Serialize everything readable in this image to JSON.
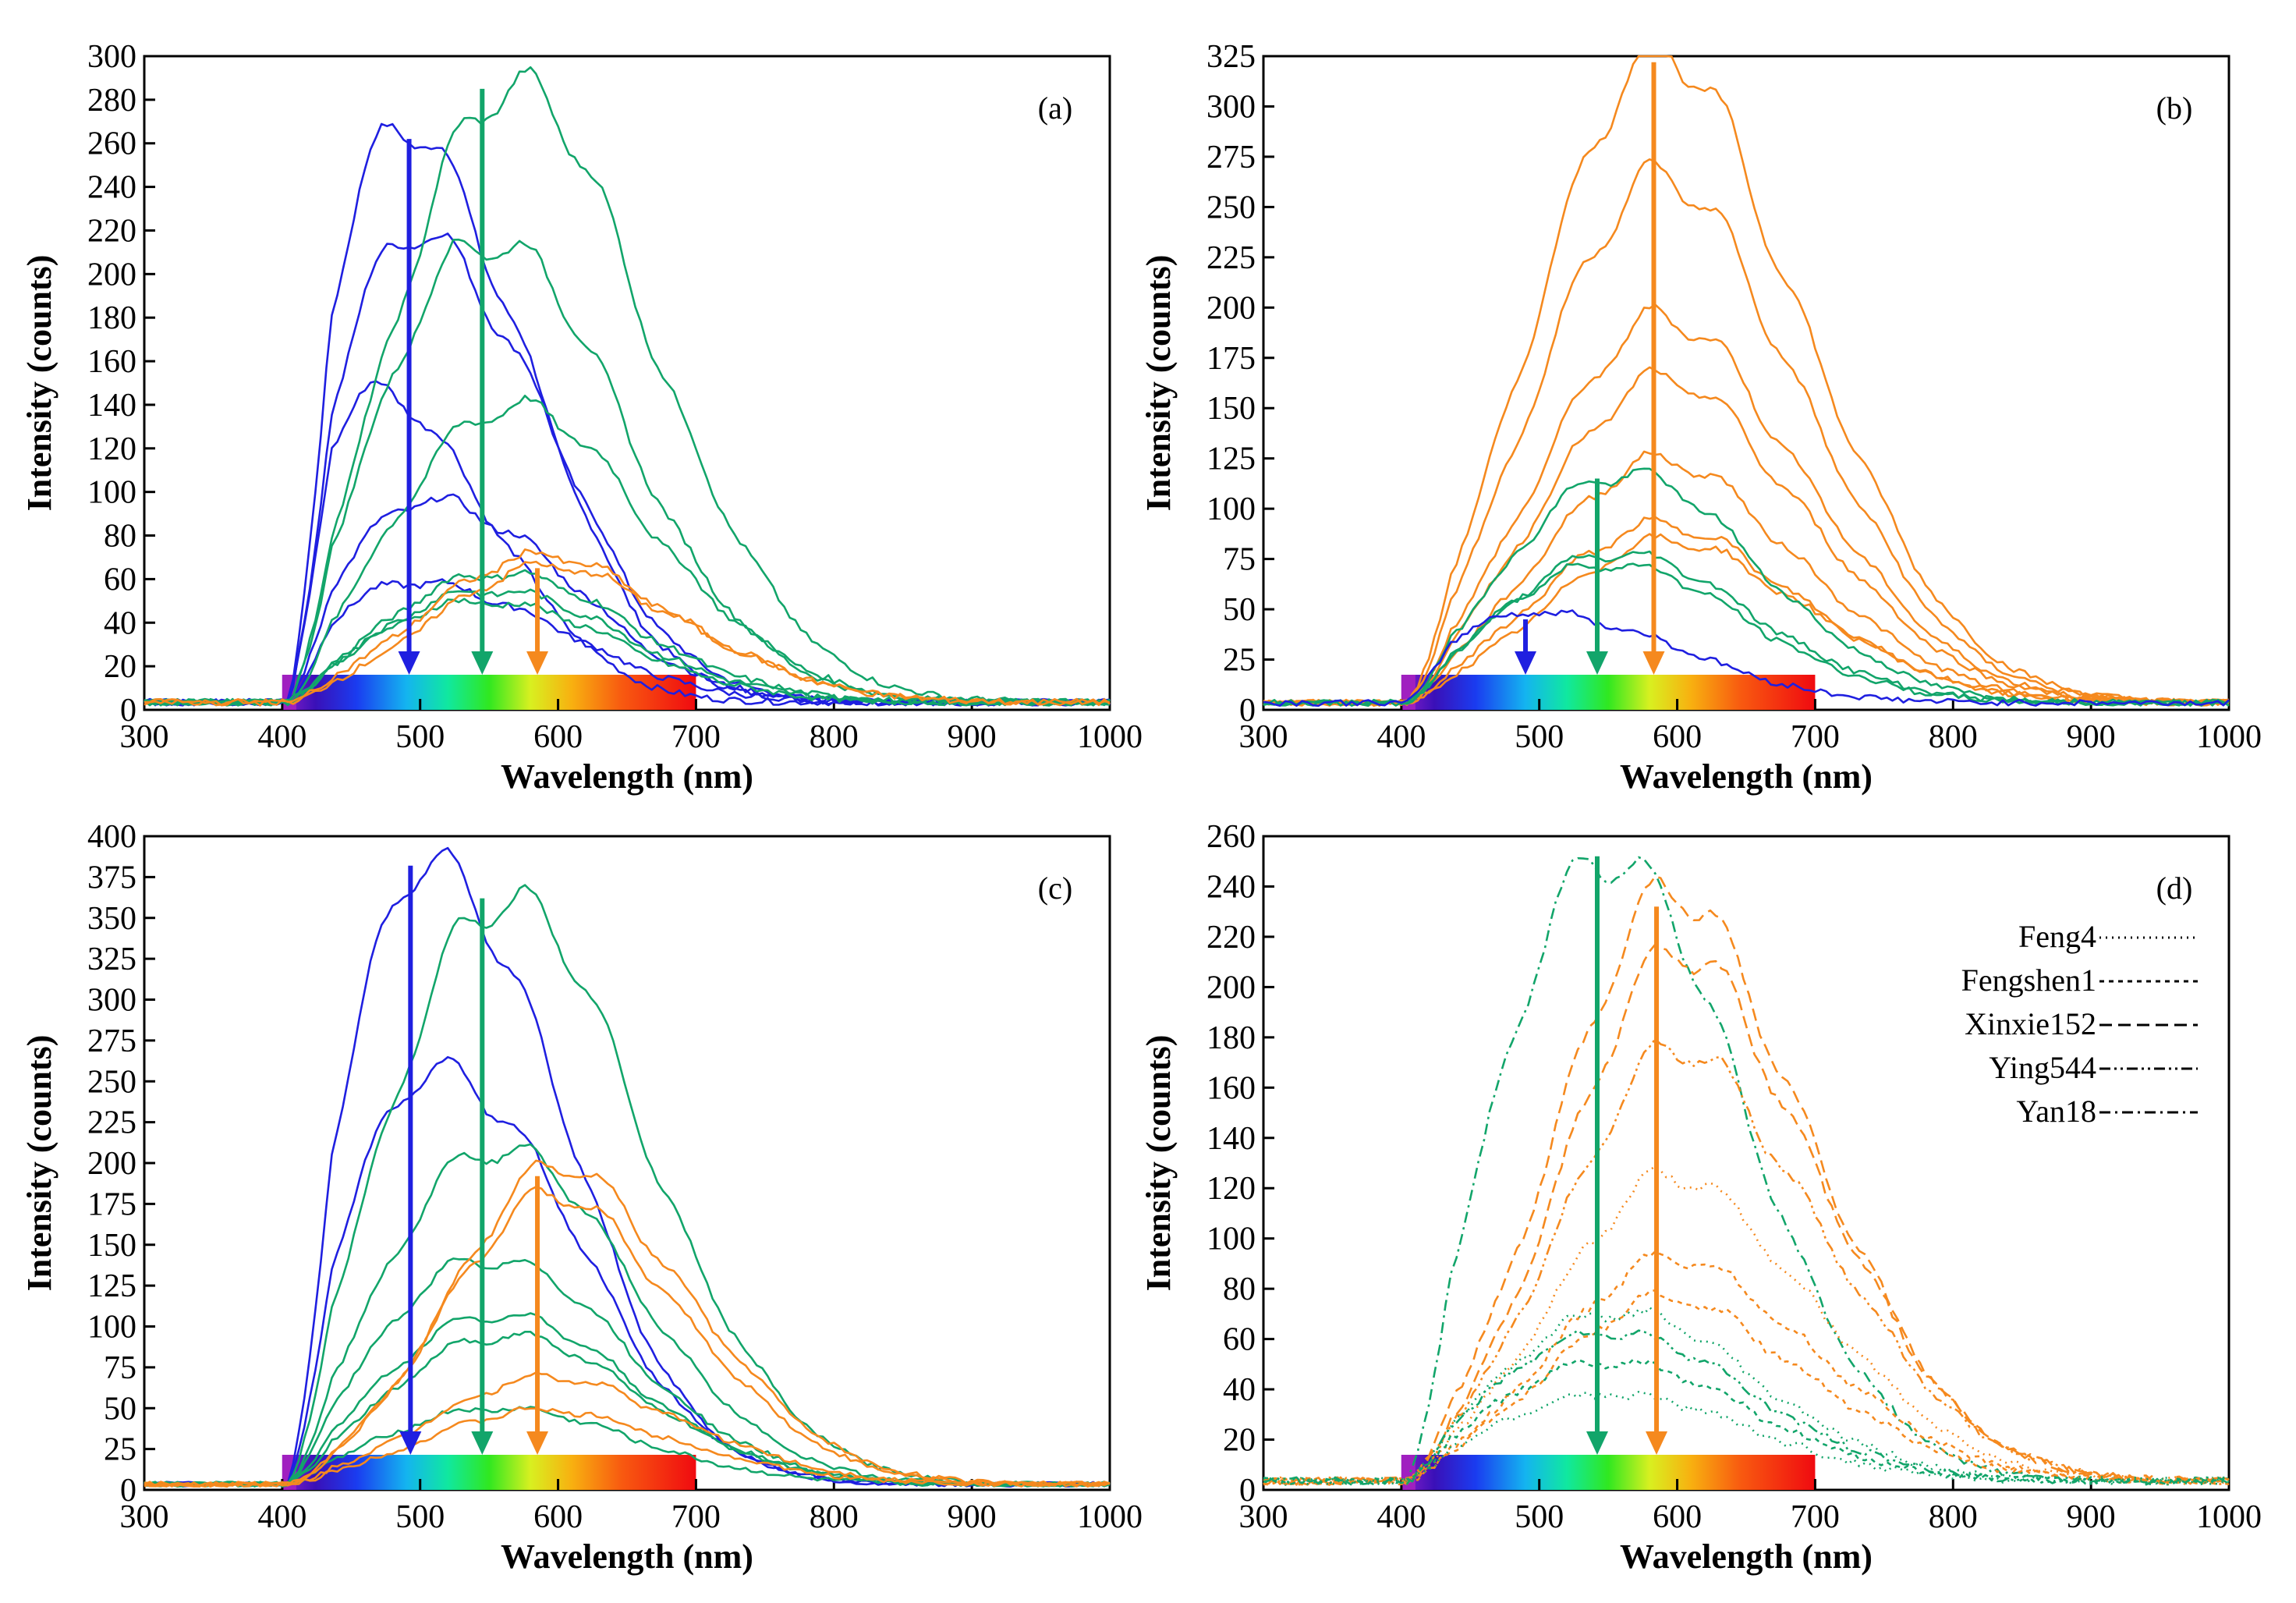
{
  "figure": {
    "spectrum_band_range_nm": [
      400,
      700
    ],
    "colors": {
      "blue": "#1f1fe0",
      "green": "#12a56a",
      "orange": "#f5891e",
      "violet": "#a020c0"
    }
  },
  "chart_data": [
    {
      "type": "line",
      "panel_label": "(a)",
      "xlabel": "Wavelength (nm)",
      "ylabel": "Intensity (counts)",
      "xlim": [
        300,
        1000
      ],
      "ylim": [
        0,
        300
      ],
      "x_ticks": [
        300,
        400,
        500,
        600,
        700,
        800,
        900,
        1000
      ],
      "y_ticks": [
        0,
        20,
        40,
        60,
        80,
        100,
        120,
        140,
        160,
        180,
        200,
        220,
        240,
        260,
        280,
        300
      ],
      "arrows": [
        {
          "x": 492,
          "top": 262,
          "color": "blue"
        },
        {
          "x": 545,
          "top": 285,
          "color": "green"
        },
        {
          "x": 585,
          "top": 65,
          "color": "orange"
        }
      ],
      "series": [
        {
          "name": "blue-1",
          "color": "blue",
          "peak": 262,
          "center": 490,
          "width": 95
        },
        {
          "name": "blue-2",
          "color": "blue",
          "peak": 215,
          "center": 500,
          "width": 100
        },
        {
          "name": "blue-3",
          "color": "blue",
          "peak": 140,
          "center": 470,
          "width": 90
        },
        {
          "name": "blue-4",
          "color": "blue",
          "peak": 93,
          "center": 510,
          "width": 105
        },
        {
          "name": "blue-5",
          "color": "blue",
          "peak": 55,
          "center": 500,
          "width": 110
        },
        {
          "name": "green-1",
          "color": "green",
          "peak": 285,
          "center": 560,
          "width": 115
        },
        {
          "name": "green-2",
          "color": "green",
          "peak": 215,
          "center": 545,
          "width": 110
        },
        {
          "name": "green-3",
          "color": "green",
          "peak": 137,
          "center": 560,
          "width": 115
        },
        {
          "name": "green-4",
          "color": "green",
          "peak": 60,
          "center": 550,
          "width": 110
        },
        {
          "name": "green-5",
          "color": "green",
          "peak": 52,
          "center": 545,
          "width": 110
        },
        {
          "name": "green-6",
          "color": "green",
          "peak": 47,
          "center": 540,
          "width": 110
        },
        {
          "name": "orange-1",
          "color": "orange",
          "peak": 67,
          "center": 580,
          "width": 115
        },
        {
          "name": "orange-2",
          "color": "orange",
          "peak": 62,
          "center": 585,
          "width": 115
        }
      ]
    },
    {
      "type": "line",
      "panel_label": "(b)",
      "xlabel": "Wavelength (nm)",
      "ylabel": "Intensity (counts)",
      "xlim": [
        300,
        1000
      ],
      "ylim": [
        0,
        325
      ],
      "x_ticks": [
        300,
        400,
        500,
        600,
        700,
        800,
        900,
        1000
      ],
      "y_ticks": [
        0,
        25,
        50,
        75,
        100,
        125,
        150,
        175,
        200,
        225,
        250,
        275,
        300,
        325
      ],
      "arrows": [
        {
          "x": 490,
          "top": 45,
          "color": "blue"
        },
        {
          "x": 542,
          "top": 115,
          "color": "green"
        },
        {
          "x": 583,
          "top": 322,
          "color": "orange"
        }
      ],
      "series": [
        {
          "name": "orange-1",
          "color": "orange",
          "peak": 322,
          "center": 580,
          "width": 120
        },
        {
          "name": "orange-2",
          "color": "orange",
          "peak": 260,
          "center": 580,
          "width": 120
        },
        {
          "name": "orange-3",
          "color": "orange",
          "peak": 190,
          "center": 582,
          "width": 120
        },
        {
          "name": "orange-4",
          "color": "orange",
          "peak": 160,
          "center": 582,
          "width": 120
        },
        {
          "name": "orange-5",
          "color": "orange",
          "peak": 120,
          "center": 580,
          "width": 118
        },
        {
          "name": "orange-6",
          "color": "orange",
          "peak": 88,
          "center": 580,
          "width": 118
        },
        {
          "name": "orange-7",
          "color": "orange",
          "peak": 80,
          "center": 585,
          "width": 118
        },
        {
          "name": "green-1",
          "color": "green",
          "peak": 115,
          "center": 555,
          "width": 112
        },
        {
          "name": "green-2",
          "color": "green",
          "peak": 75,
          "center": 550,
          "width": 112
        },
        {
          "name": "green-3",
          "color": "green",
          "peak": 70,
          "center": 545,
          "width": 112
        },
        {
          "name": "blue-1",
          "color": "blue",
          "peak": 45,
          "center": 500,
          "width": 110
        }
      ]
    },
    {
      "type": "line",
      "panel_label": "(c)",
      "xlabel": "Wavelength (nm)",
      "ylabel": "Intensity (counts)",
      "xlim": [
        300,
        1000
      ],
      "ylim": [
        0,
        400
      ],
      "x_ticks": [
        300,
        400,
        500,
        600,
        700,
        800,
        900,
        1000
      ],
      "y_ticks": [
        0,
        25,
        50,
        75,
        100,
        125,
        150,
        175,
        200,
        225,
        250,
        275,
        300,
        325,
        350,
        375,
        400
      ],
      "arrows": [
        {
          "x": 493,
          "top": 382,
          "color": "blue"
        },
        {
          "x": 545,
          "top": 362,
          "color": "green"
        },
        {
          "x": 585,
          "top": 192,
          "color": "orange"
        }
      ],
      "series": [
        {
          "name": "blue-1",
          "color": "blue",
          "peak": 382,
          "center": 510,
          "width": 100
        },
        {
          "name": "blue-2",
          "color": "blue",
          "peak": 255,
          "center": 515,
          "width": 105
        },
        {
          "name": "green-1",
          "color": "green",
          "peak": 362,
          "center": 555,
          "width": 115
        },
        {
          "name": "green-2",
          "color": "green",
          "peak": 208,
          "center": 550,
          "width": 112
        },
        {
          "name": "green-3",
          "color": "green",
          "peak": 140,
          "center": 545,
          "width": 112
        },
        {
          "name": "green-4",
          "color": "green",
          "peak": 105,
          "center": 550,
          "width": 112
        },
        {
          "name": "green-5",
          "color": "green",
          "peak": 92,
          "center": 555,
          "width": 112
        },
        {
          "name": "green-6",
          "color": "green",
          "peak": 47,
          "center": 550,
          "width": 112
        },
        {
          "name": "orange-1",
          "color": "orange",
          "peak": 192,
          "center": 595,
          "width": 110
        },
        {
          "name": "orange-2",
          "color": "orange",
          "peak": 175,
          "center": 590,
          "width": 110
        },
        {
          "name": "orange-3",
          "color": "orange",
          "peak": 65,
          "center": 585,
          "width": 115
        },
        {
          "name": "orange-4",
          "color": "orange",
          "peak": 45,
          "center": 580,
          "width": 115
        }
      ]
    },
    {
      "type": "line",
      "panel_label": "(d)",
      "xlabel": "Wavelength (nm)",
      "ylabel": "Intensity (counts)",
      "xlim": [
        300,
        1000
      ],
      "ylim": [
        0,
        260
      ],
      "x_ticks": [
        300,
        400,
        500,
        600,
        700,
        800,
        900,
        1000
      ],
      "y_ticks": [
        0,
        20,
        40,
        60,
        80,
        100,
        120,
        140,
        160,
        180,
        200,
        220,
        240,
        260
      ],
      "legend": [
        {
          "label": "Feng4",
          "dash": "2,6"
        },
        {
          "label": "Fengshen1",
          "dash": "6,6"
        },
        {
          "label": "Xinxie152",
          "dash": "16,8"
        },
        {
          "label": "Ying544",
          "dash": "14,5,3,5,3,5"
        },
        {
          "label": "Yan18",
          "dash": "14,6,3,6"
        }
      ],
      "arrows": [
        {
          "x": 542,
          "top": 252,
          "color": "green"
        },
        {
          "x": 585,
          "top": 232,
          "color": "orange"
        }
      ],
      "series": [
        {
          "name": "Yan18 green",
          "color": "green",
          "peak": 252,
          "center": 545,
          "width": 110,
          "dash": "14,6,3,6"
        },
        {
          "name": "Xinxie152 orange",
          "color": "orange",
          "peak": 232,
          "center": 590,
          "width": 115,
          "dash": "16,8"
        },
        {
          "name": "Xinxie152 orange 2",
          "color": "orange",
          "peak": 208,
          "center": 595,
          "width": 115,
          "dash": "16,8"
        },
        {
          "name": "Ying544 orange",
          "color": "orange",
          "peak": 170,
          "center": 595,
          "width": 118,
          "dash": "14,5,3,5,3,5"
        },
        {
          "name": "Feng4 orange",
          "color": "orange",
          "peak": 120,
          "center": 590,
          "width": 118,
          "dash": "2,6"
        },
        {
          "name": "Fengshen1 orange",
          "color": "orange",
          "peak": 88,
          "center": 590,
          "width": 118,
          "dash": "6,6"
        },
        {
          "name": "Fengshen1 orange 2",
          "color": "orange",
          "peak": 72,
          "center": 585,
          "width": 118,
          "dash": "6,6"
        },
        {
          "name": "Feng4 green",
          "color": "green",
          "peak": 68,
          "center": 550,
          "width": 115,
          "dash": "2,6"
        },
        {
          "name": "Ying544 green",
          "color": "green",
          "peak": 60,
          "center": 545,
          "width": 115,
          "dash": "14,5,3,5,3,5"
        },
        {
          "name": "Fengshen1 green",
          "color": "green",
          "peak": 48,
          "center": 545,
          "width": 115,
          "dash": "6,6"
        },
        {
          "name": "Feng4 green 2",
          "color": "green",
          "peak": 35,
          "center": 545,
          "width": 115,
          "dash": "2,6"
        }
      ]
    }
  ]
}
